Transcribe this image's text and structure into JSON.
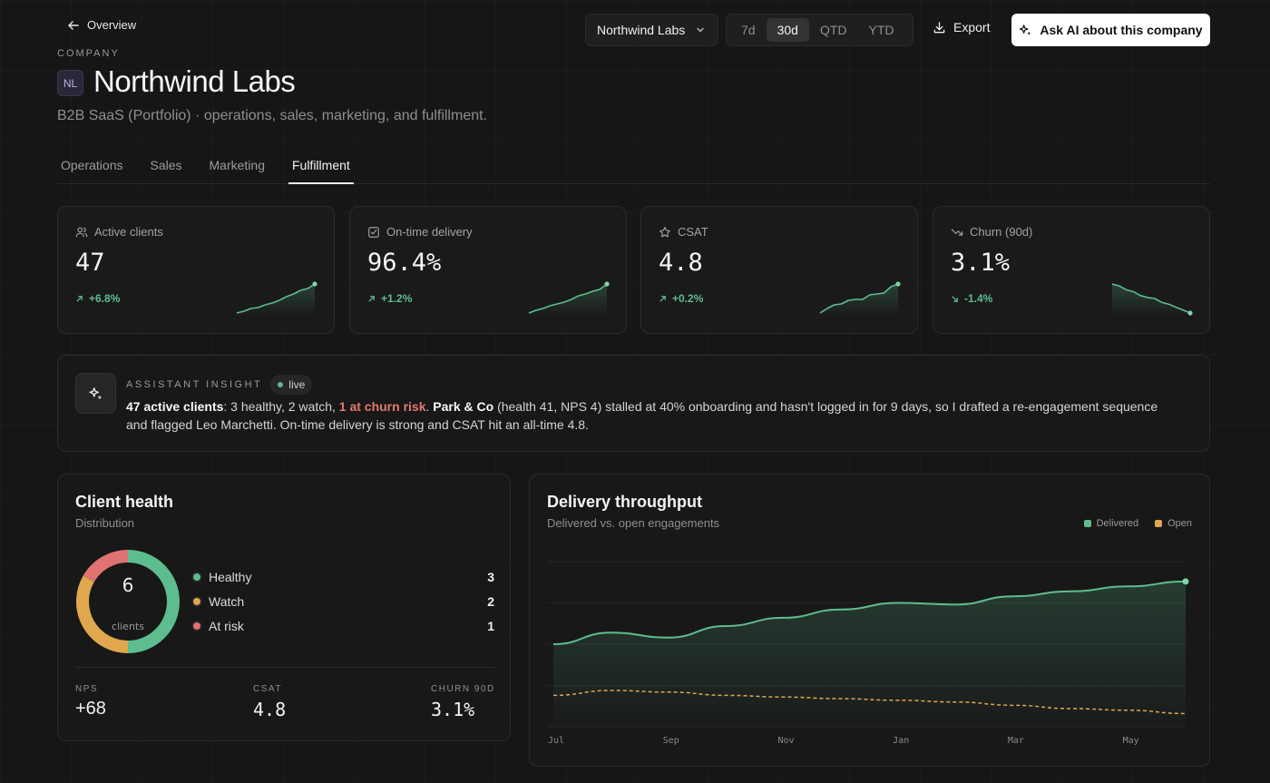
{
  "header": {
    "back_label": "Overview",
    "company_select": "Northwind Labs",
    "ranges": [
      "7d",
      "30d",
      "QTD",
      "YTD"
    ],
    "active_range": "30d",
    "export_label": "Export",
    "ask_label": "Ask AI about this company"
  },
  "company": {
    "eyebrow": "COMPANY",
    "initials": "NL",
    "name": "Northwind Labs",
    "description": "B2B SaaS (Portfolio) · operations, sales, marketing, and fulfillment."
  },
  "tabs": [
    {
      "label": "Operations"
    },
    {
      "label": "Sales"
    },
    {
      "label": "Marketing"
    },
    {
      "label": "Fulfillment"
    }
  ],
  "active_tab": "Fulfillment",
  "kpis": [
    {
      "label": "Active clients",
      "icon": "users-icon",
      "value": "47",
      "delta": "+6.8%",
      "trend": "up"
    },
    {
      "label": "On-time delivery",
      "icon": "check-square-icon",
      "value": "96.4%",
      "delta": "+1.2%",
      "trend": "up"
    },
    {
      "label": "CSAT",
      "icon": "star-icon",
      "value": "4.8",
      "delta": "+0.2%",
      "trend": "up"
    },
    {
      "label": "Churn (90d)",
      "icon": "trending-down-icon",
      "value": "3.1%",
      "delta": "-1.4%",
      "trend": "down"
    }
  ],
  "insight": {
    "kicker": "ASSISTANT INSIGHT",
    "live_label": "live",
    "bold_lead": "47 active clients",
    "text_a": ": 3 healthy, 2 watch, ",
    "risk": "1 at churn risk",
    "text_b": ". ",
    "client": "Park & Co",
    "text_c": " (health 41, NPS 4) stalled at 40% onboarding and hasn't logged in for 9 days, so I drafted a re-engagement sequence and flagged Leo Marchetti. On-time delivery is strong and CSAT hit an all-time 4.8."
  },
  "client_health": {
    "title": "Client health",
    "subtitle": "Distribution",
    "total": "6",
    "total_label": "clients",
    "segments": [
      {
        "label": "Healthy",
        "count": 3,
        "color": "#5dbd8e"
      },
      {
        "label": "Watch",
        "count": 2,
        "color": "#e0a74e"
      },
      {
        "label": "At risk",
        "count": 1,
        "color": "#e07272"
      }
    ],
    "stats": [
      {
        "label": "NPS",
        "value": "+68"
      },
      {
        "label": "CSAT",
        "value": "4.8"
      },
      {
        "label": "CHURN 90D",
        "value": "3.1%"
      }
    ]
  },
  "throughput": {
    "title": "Delivery throughput",
    "subtitle": "Delivered vs. open engagements",
    "chart_data": {
      "type": "area",
      "x": [
        "Jul",
        "Aug",
        "Sep",
        "Oct",
        "Nov",
        "Dec",
        "Jan",
        "Feb",
        "Mar",
        "Apr",
        "May",
        "Jun"
      ],
      "xticks": [
        "Jul",
        "Sep",
        "Nov",
        "Jan",
        "Mar",
        "May"
      ],
      "series": [
        {
          "name": "Delivered",
          "color": "#5dbd8e",
          "values": [
            50,
            57,
            54,
            61,
            66,
            71,
            75,
            74,
            79,
            82,
            85,
            88
          ]
        },
        {
          "name": "Open",
          "color": "#e0a74e",
          "values": [
            19,
            22,
            21,
            19,
            18,
            17,
            16,
            15,
            13,
            11,
            10,
            8
          ]
        }
      ],
      "ylim": [
        0,
        100
      ],
      "grid": true
    }
  },
  "sparks": [
    [
      12,
      14,
      17,
      18,
      21,
      23,
      26,
      30,
      33,
      37,
      39,
      44
    ],
    [
      12,
      15,
      17,
      20,
      22,
      24,
      27,
      31,
      33,
      36,
      38,
      44
    ],
    [
      10,
      15,
      19,
      20,
      24,
      25,
      25,
      30,
      31,
      32,
      39,
      42
    ],
    [
      42,
      40,
      36,
      34,
      30,
      28,
      27,
      23,
      21,
      18,
      15,
      12
    ]
  ],
  "colors": {
    "accent_green": "#5dbd8e",
    "accent_amber": "#e0a74e",
    "accent_red": "#e07272"
  }
}
